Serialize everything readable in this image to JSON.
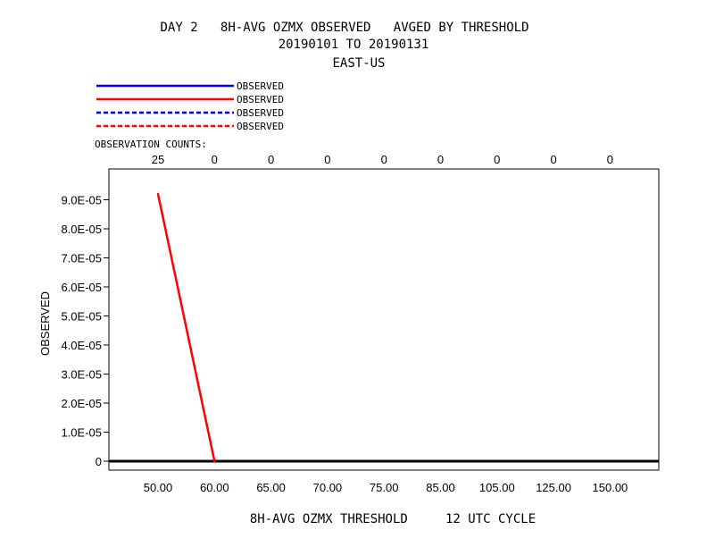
{
  "header": {
    "title_line1": "DAY 2   8H-AVG OZMX OBSERVED   AVGED BY THRESHOLD",
    "title_line2": "20190101 TO 20190131",
    "title_line3": "EAST-US"
  },
  "legend": {
    "entries": [
      {
        "label": "OBSERVED",
        "color": "#0000ff",
        "style": "solid"
      },
      {
        "label": "OBSERVED",
        "color": "#ff0000",
        "style": "solid"
      },
      {
        "label": "OBSERVED",
        "color": "#0000ff",
        "style": "dashed"
      },
      {
        "label": "OBSERVED",
        "color": "#ff0000",
        "style": "dashed"
      }
    ]
  },
  "counts": {
    "label": "OBSERVATION COUNTS:",
    "values": [
      "25",
      "0",
      "0",
      "0",
      "0",
      "0",
      "0",
      "0",
      "0"
    ]
  },
  "chart_data": {
    "type": "line",
    "categories": [
      "50.00",
      "60.00",
      "65.00",
      "70.00",
      "75.00",
      "85.00",
      "105.00",
      "125.00",
      "150.00"
    ],
    "series": [
      {
        "name": "OBSERVED",
        "color": "#ff0000",
        "values": [
          9.2e-05,
          0,
          null,
          null,
          null,
          null,
          null,
          null,
          null
        ]
      }
    ],
    "yticks": [
      "0",
      "1.0E-05",
      "2.0E-05",
      "3.0E-05",
      "4.0E-05",
      "5.0E-05",
      "6.0E-05",
      "7.0E-05",
      "8.0E-05",
      "9.0E-05"
    ],
    "ylim": [
      0,
      9.25e-05
    ],
    "ylabel": "OBSERVED",
    "xlabel": "8H-AVG OZMX THRESHOLD     12 UTC CYCLE"
  }
}
